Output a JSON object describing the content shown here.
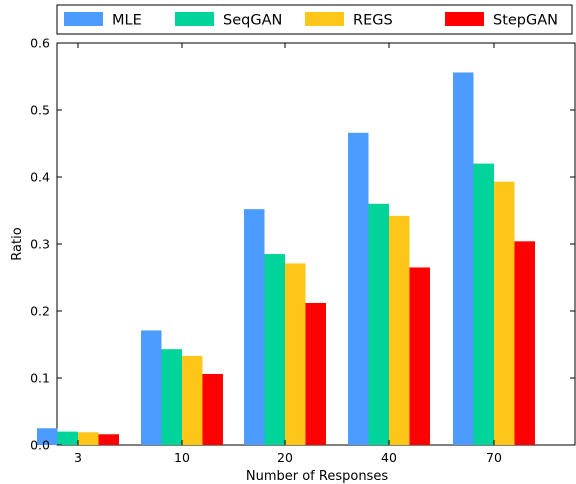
{
  "chart_data": {
    "type": "bar",
    "title": "",
    "xlabel": "Number of Responses",
    "ylabel": "Ratio",
    "categories": [
      "3",
      "10",
      "20",
      "40",
      "70"
    ],
    "series": [
      {
        "name": "MLE",
        "color": "#4c9bff",
        "values": [
          0.025,
          0.171,
          0.352,
          0.466,
          0.556
        ]
      },
      {
        "name": "SeqGAN",
        "color": "#00d49b",
        "values": [
          0.02,
          0.143,
          0.285,
          0.36,
          0.42
        ]
      },
      {
        "name": "REGS",
        "color": "#ffc61a",
        "values": [
          0.019,
          0.133,
          0.271,
          0.342,
          0.393
        ]
      },
      {
        "name": "StepGAN",
        "color": "#ff0000",
        "values": [
          0.016,
          0.106,
          0.212,
          0.265,
          0.304
        ]
      }
    ],
    "ylim": [
      0,
      0.6
    ],
    "yticks": [
      "0.0",
      "0.1",
      "0.2",
      "0.3",
      "0.4",
      "0.5",
      "0.6"
    ],
    "grid": false,
    "legend_position": "top"
  }
}
